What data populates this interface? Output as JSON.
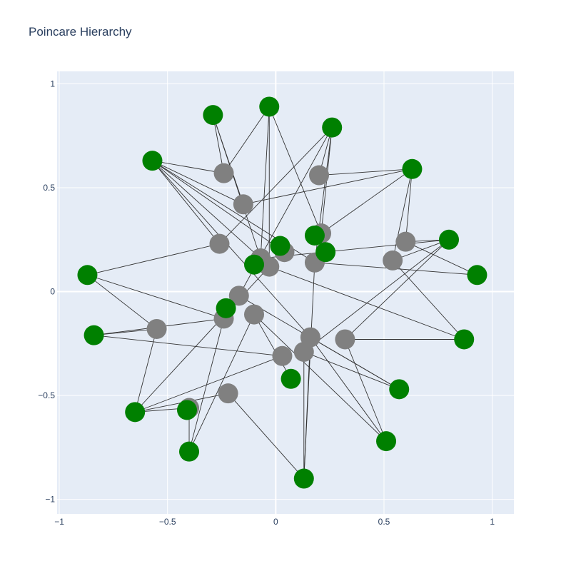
{
  "chart_data": {
    "type": "scatter",
    "title": "Poincare Hierarchy",
    "xlabel": "",
    "ylabel": "",
    "xlim": [
      -1.01,
      1.1
    ],
    "ylim": [
      -1.07,
      1.06
    ],
    "xticks": [
      -1,
      -0.5,
      0,
      0.5,
      1
    ],
    "yticks": [
      -1,
      -0.5,
      0,
      0.5,
      1
    ],
    "xtick_labels": [
      "−1",
      "−0.5",
      "0",
      "0.5",
      "1"
    ],
    "ytick_labels": [
      "−1",
      "−0.5",
      "0",
      "0.5",
      "1"
    ],
    "grid": true,
    "colors": {
      "plot_bg": "#e5ecf6",
      "grid": "#ffffff",
      "edge": "#333333",
      "leaf_node": "#008000",
      "internal_node": "#808080",
      "text": "#2a3f5f"
    },
    "nodes": [
      {
        "id": "g1",
        "x": -0.29,
        "y": 0.85,
        "group": "leaf"
      },
      {
        "id": "g2",
        "x": -0.03,
        "y": 0.89,
        "group": "leaf"
      },
      {
        "id": "g3",
        "x": 0.26,
        "y": 0.79,
        "group": "leaf"
      },
      {
        "id": "g4",
        "x": -0.57,
        "y": 0.63,
        "group": "leaf"
      },
      {
        "id": "g5",
        "x": 0.63,
        "y": 0.59,
        "group": "leaf"
      },
      {
        "id": "g6",
        "x": 0.8,
        "y": 0.25,
        "group": "leaf"
      },
      {
        "id": "g7",
        "x": 0.93,
        "y": 0.08,
        "group": "leaf"
      },
      {
        "id": "g8",
        "x": 0.02,
        "y": 0.22,
        "group": "leaf"
      },
      {
        "id": "g9",
        "x": 0.18,
        "y": 0.27,
        "group": "leaf"
      },
      {
        "id": "g10",
        "x": 0.23,
        "y": 0.19,
        "group": "leaf"
      },
      {
        "id": "g11",
        "x": -0.1,
        "y": 0.13,
        "group": "leaf"
      },
      {
        "id": "g12",
        "x": -0.87,
        "y": 0.08,
        "group": "leaf"
      },
      {
        "id": "g13",
        "x": -0.23,
        "y": -0.08,
        "group": "leaf"
      },
      {
        "id": "g14",
        "x": -0.84,
        "y": -0.21,
        "group": "leaf"
      },
      {
        "id": "g15",
        "x": 0.87,
        "y": -0.23,
        "group": "leaf"
      },
      {
        "id": "g16",
        "x": 0.07,
        "y": -0.42,
        "group": "leaf"
      },
      {
        "id": "g17",
        "x": 0.57,
        "y": -0.47,
        "group": "leaf"
      },
      {
        "id": "g18",
        "x": -0.65,
        "y": -0.58,
        "group": "leaf"
      },
      {
        "id": "g19",
        "x": -0.41,
        "y": -0.57,
        "group": "leaf"
      },
      {
        "id": "g20",
        "x": -0.4,
        "y": -0.77,
        "group": "leaf"
      },
      {
        "id": "g21",
        "x": 0.51,
        "y": -0.72,
        "group": "leaf"
      },
      {
        "id": "g22",
        "x": 0.13,
        "y": -0.9,
        "group": "leaf"
      },
      {
        "id": "n1",
        "x": -0.24,
        "y": 0.57,
        "group": "internal"
      },
      {
        "id": "n2",
        "x": 0.2,
        "y": 0.56,
        "group": "internal"
      },
      {
        "id": "n3",
        "x": -0.15,
        "y": 0.42,
        "group": "internal"
      },
      {
        "id": "n4",
        "x": -0.26,
        "y": 0.23,
        "group": "internal"
      },
      {
        "id": "n5",
        "x": 0.21,
        "y": 0.28,
        "group": "internal"
      },
      {
        "id": "n6",
        "x": 0.6,
        "y": 0.24,
        "group": "internal"
      },
      {
        "id": "n7",
        "x": 0.04,
        "y": 0.19,
        "group": "internal"
      },
      {
        "id": "n8",
        "x": -0.07,
        "y": 0.16,
        "group": "internal"
      },
      {
        "id": "n9",
        "x": 0.54,
        "y": 0.15,
        "group": "internal"
      },
      {
        "id": "n10",
        "x": 0.18,
        "y": 0.14,
        "group": "internal"
      },
      {
        "id": "n11",
        "x": -0.03,
        "y": 0.12,
        "group": "internal"
      },
      {
        "id": "n12",
        "x": -0.17,
        "y": -0.02,
        "group": "internal"
      },
      {
        "id": "n13",
        "x": -0.1,
        "y": -0.11,
        "group": "internal"
      },
      {
        "id": "n14",
        "x": -0.24,
        "y": -0.13,
        "group": "internal"
      },
      {
        "id": "n15",
        "x": -0.55,
        "y": -0.18,
        "group": "internal"
      },
      {
        "id": "n16",
        "x": 0.16,
        "y": -0.22,
        "group": "internal"
      },
      {
        "id": "n17",
        "x": 0.32,
        "y": -0.23,
        "group": "internal"
      },
      {
        "id": "n18",
        "x": 0.13,
        "y": -0.29,
        "group": "internal"
      },
      {
        "id": "n19",
        "x": 0.03,
        "y": -0.31,
        "group": "internal"
      },
      {
        "id": "n20",
        "x": -0.22,
        "y": -0.49,
        "group": "internal"
      },
      {
        "id": "n21",
        "x": -0.4,
        "y": -0.56,
        "group": "internal"
      }
    ],
    "edges": [
      [
        "g1",
        "n1"
      ],
      [
        "g1",
        "n3"
      ],
      [
        "g1",
        "n8"
      ],
      [
        "g2",
        "n8"
      ],
      [
        "g2",
        "n1"
      ],
      [
        "g2",
        "n5"
      ],
      [
        "g2",
        "n11"
      ],
      [
        "g3",
        "n2"
      ],
      [
        "g3",
        "n4"
      ],
      [
        "g3",
        "n10"
      ],
      [
        "g3",
        "n12"
      ],
      [
        "g3",
        "n5"
      ],
      [
        "g4",
        "n1"
      ],
      [
        "g4",
        "n3"
      ],
      [
        "g4",
        "n4"
      ],
      [
        "g4",
        "n8"
      ],
      [
        "g4",
        "n10"
      ],
      [
        "g4",
        "n16"
      ],
      [
        "g4",
        "n7"
      ],
      [
        "g5",
        "n2"
      ],
      [
        "g5",
        "n3"
      ],
      [
        "g5",
        "n9"
      ],
      [
        "g5",
        "n6"
      ],
      [
        "g5",
        "n5"
      ],
      [
        "g6",
        "n6"
      ],
      [
        "g6",
        "n9"
      ],
      [
        "g6",
        "n8"
      ],
      [
        "g6",
        "n17"
      ],
      [
        "g6",
        "n18"
      ],
      [
        "g7",
        "n6"
      ],
      [
        "g7",
        "n10"
      ],
      [
        "g12",
        "n4"
      ],
      [
        "g12",
        "n15"
      ],
      [
        "g12",
        "n14"
      ],
      [
        "g14",
        "n14"
      ],
      [
        "g14",
        "n19"
      ],
      [
        "g14",
        "n15"
      ],
      [
        "g15",
        "n17"
      ],
      [
        "g15",
        "n9"
      ],
      [
        "g15",
        "n11"
      ],
      [
        "g16",
        "n13"
      ],
      [
        "g17",
        "n16"
      ],
      [
        "g17",
        "n18"
      ],
      [
        "g17",
        "n12"
      ],
      [
        "g18",
        "n15"
      ],
      [
        "g18",
        "n11"
      ],
      [
        "g18",
        "n19"
      ],
      [
        "g18",
        "n21"
      ],
      [
        "g18",
        "n20"
      ],
      [
        "g20",
        "n14"
      ],
      [
        "g20",
        "n13"
      ],
      [
        "g20",
        "n21"
      ],
      [
        "g21",
        "n16"
      ],
      [
        "g21",
        "n17"
      ],
      [
        "g21",
        "n13"
      ],
      [
        "g22",
        "n18"
      ],
      [
        "g22",
        "n10"
      ],
      [
        "g22",
        "n20"
      ],
      [
        "g22",
        "n16"
      ]
    ]
  }
}
